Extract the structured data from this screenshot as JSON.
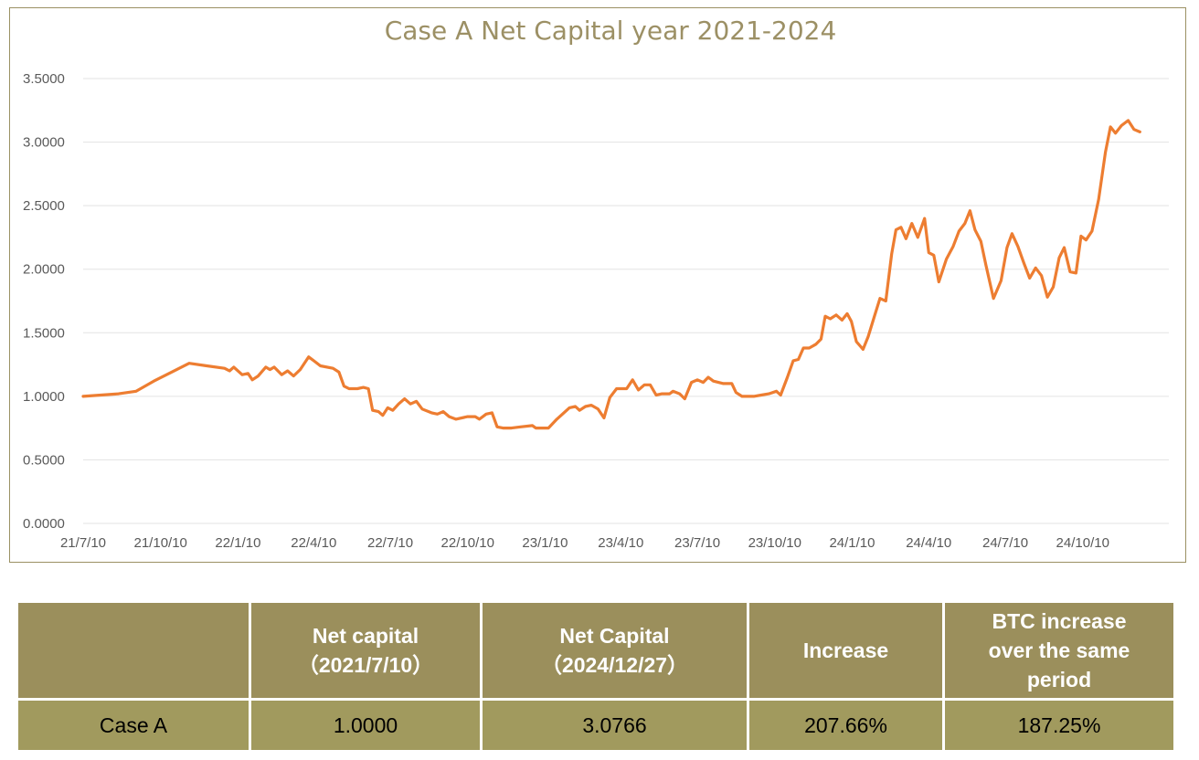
{
  "chart_data": {
    "type": "line",
    "title": "Case A Net Capital year 2021-2024",
    "ylim": [
      0,
      3.5
    ],
    "y_ticks": [
      "0.0000",
      "0.5000",
      "1.0000",
      "1.5000",
      "2.0000",
      "2.5000",
      "3.0000",
      "3.5000"
    ],
    "x_ticks": [
      "21/7/10",
      "21/10/10",
      "22/1/10",
      "22/4/10",
      "22/7/10",
      "22/10/10",
      "23/1/10",
      "23/4/10",
      "23/7/10",
      "23/10/10",
      "24/1/10",
      "24/4/10",
      "24/7/10",
      "24/10/10"
    ],
    "grid": "horizontal",
    "series": [
      {
        "color": "#ed7d31",
        "points": [
          [
            "2021-07-10",
            1.0
          ],
          [
            "2021-07-31",
            1.01
          ],
          [
            "2021-08-21",
            1.02
          ],
          [
            "2021-09-11",
            1.04
          ],
          [
            "2021-10-02",
            1.12
          ],
          [
            "2021-10-23",
            1.19
          ],
          [
            "2021-11-13",
            1.26
          ],
          [
            "2021-12-04",
            1.24
          ],
          [
            "2021-12-25",
            1.22
          ],
          [
            "2021-12-31",
            1.2
          ],
          [
            "2022-01-05",
            1.23
          ],
          [
            "2022-01-15",
            1.17
          ],
          [
            "2022-01-22",
            1.18
          ],
          [
            "2022-01-27",
            1.13
          ],
          [
            "2022-02-03",
            1.16
          ],
          [
            "2022-02-12",
            1.23
          ],
          [
            "2022-02-17",
            1.21
          ],
          [
            "2022-02-22",
            1.23
          ],
          [
            "2022-03-03",
            1.17
          ],
          [
            "2022-03-10",
            1.2
          ],
          [
            "2022-03-17",
            1.16
          ],
          [
            "2022-03-25",
            1.21
          ],
          [
            "2022-04-04",
            1.31
          ],
          [
            "2022-04-10",
            1.28
          ],
          [
            "2022-04-18",
            1.24
          ],
          [
            "2022-05-03",
            1.22
          ],
          [
            "2022-05-10",
            1.19
          ],
          [
            "2022-05-16",
            1.08
          ],
          [
            "2022-05-22",
            1.06
          ],
          [
            "2022-06-01",
            1.06
          ],
          [
            "2022-06-08",
            1.07
          ],
          [
            "2022-06-14",
            1.06
          ],
          [
            "2022-06-19",
            0.89
          ],
          [
            "2022-06-26",
            0.88
          ],
          [
            "2022-07-01",
            0.85
          ],
          [
            "2022-07-07",
            0.91
          ],
          [
            "2022-07-13",
            0.89
          ],
          [
            "2022-07-20",
            0.94
          ],
          [
            "2022-07-27",
            0.98
          ],
          [
            "2022-08-03",
            0.94
          ],
          [
            "2022-08-10",
            0.96
          ],
          [
            "2022-08-17",
            0.9
          ],
          [
            "2022-08-28",
            0.87
          ],
          [
            "2022-09-04",
            0.86
          ],
          [
            "2022-09-11",
            0.88
          ],
          [
            "2022-09-18",
            0.84
          ],
          [
            "2022-09-26",
            0.82
          ],
          [
            "2022-10-10",
            0.84
          ],
          [
            "2022-10-19",
            0.84
          ],
          [
            "2022-10-24",
            0.82
          ],
          [
            "2022-11-01",
            0.86
          ],
          [
            "2022-11-08",
            0.87
          ],
          [
            "2022-11-14",
            0.76
          ],
          [
            "2022-11-21",
            0.75
          ],
          [
            "2022-12-01",
            0.75
          ],
          [
            "2022-12-12",
            0.76
          ],
          [
            "2022-12-26",
            0.77
          ],
          [
            "2022-12-30",
            0.75
          ],
          [
            "2023-01-14",
            0.75
          ],
          [
            "2023-01-24",
            0.82
          ],
          [
            "2023-02-08",
            0.91
          ],
          [
            "2023-02-15",
            0.92
          ],
          [
            "2023-02-20",
            0.89
          ],
          [
            "2023-02-27",
            0.92
          ],
          [
            "2023-03-06",
            0.93
          ],
          [
            "2023-03-14",
            0.9
          ],
          [
            "2023-03-21",
            0.83
          ],
          [
            "2023-03-28",
            0.99
          ],
          [
            "2023-04-05",
            1.06
          ],
          [
            "2023-04-17",
            1.06
          ],
          [
            "2023-04-24",
            1.13
          ],
          [
            "2023-05-01",
            1.05
          ],
          [
            "2023-05-08",
            1.09
          ],
          [
            "2023-05-15",
            1.09
          ],
          [
            "2023-05-22",
            1.01
          ],
          [
            "2023-05-29",
            1.02
          ],
          [
            "2023-06-07",
            1.02
          ],
          [
            "2023-06-11",
            1.04
          ],
          [
            "2023-06-19",
            1.02
          ],
          [
            "2023-06-25",
            0.98
          ],
          [
            "2023-07-03",
            1.11
          ],
          [
            "2023-07-10",
            1.13
          ],
          [
            "2023-07-17",
            1.11
          ],
          [
            "2023-07-23",
            1.15
          ],
          [
            "2023-07-29",
            1.12
          ],
          [
            "2023-08-10",
            1.1
          ],
          [
            "2023-08-20",
            1.1
          ],
          [
            "2023-08-25",
            1.03
          ],
          [
            "2023-09-01",
            1.0
          ],
          [
            "2023-09-15",
            1.0
          ],
          [
            "2023-09-24",
            1.01
          ],
          [
            "2023-10-03",
            1.02
          ],
          [
            "2023-10-12",
            1.04
          ],
          [
            "2023-10-17",
            1.01
          ],
          [
            "2023-10-25",
            1.15
          ],
          [
            "2023-11-01",
            1.28
          ],
          [
            "2023-11-07",
            1.29
          ],
          [
            "2023-11-13",
            1.38
          ],
          [
            "2023-11-20",
            1.38
          ],
          [
            "2023-11-28",
            1.41
          ],
          [
            "2023-12-04",
            1.45
          ],
          [
            "2023-12-09",
            1.63
          ],
          [
            "2023-12-15",
            1.61
          ],
          [
            "2023-12-22",
            1.64
          ],
          [
            "2023-12-29",
            1.6
          ],
          [
            "2024-01-04",
            1.65
          ],
          [
            "2024-01-09",
            1.59
          ],
          [
            "2024-01-15",
            1.43
          ],
          [
            "2024-01-23",
            1.37
          ],
          [
            "2024-01-29",
            1.47
          ],
          [
            "2024-02-05",
            1.62
          ],
          [
            "2024-02-12",
            1.77
          ],
          [
            "2024-02-19",
            1.75
          ],
          [
            "2024-02-26",
            2.12
          ],
          [
            "2024-03-02",
            2.31
          ],
          [
            "2024-03-08",
            2.33
          ],
          [
            "2024-03-14",
            2.24
          ],
          [
            "2024-03-21",
            2.36
          ],
          [
            "2024-03-28",
            2.25
          ],
          [
            "2024-04-05",
            2.4
          ],
          [
            "2024-04-10",
            2.13
          ],
          [
            "2024-04-16",
            2.11
          ],
          [
            "2024-04-22",
            1.9
          ],
          [
            "2024-05-01",
            2.08
          ],
          [
            "2024-05-09",
            2.18
          ],
          [
            "2024-05-16",
            2.3
          ],
          [
            "2024-05-23",
            2.36
          ],
          [
            "2024-05-29",
            2.46
          ],
          [
            "2024-06-04",
            2.31
          ],
          [
            "2024-06-11",
            2.22
          ],
          [
            "2024-06-17",
            2.03
          ],
          [
            "2024-06-26",
            1.77
          ],
          [
            "2024-07-05",
            1.91
          ],
          [
            "2024-07-12",
            2.17
          ],
          [
            "2024-07-18",
            2.28
          ],
          [
            "2024-07-25",
            2.18
          ],
          [
            "2024-08-01",
            2.05
          ],
          [
            "2024-08-08",
            1.93
          ],
          [
            "2024-08-15",
            2.01
          ],
          [
            "2024-08-22",
            1.95
          ],
          [
            "2024-08-29",
            1.78
          ],
          [
            "2024-09-05",
            1.86
          ],
          [
            "2024-09-12",
            2.09
          ],
          [
            "2024-09-18",
            2.17
          ],
          [
            "2024-09-25",
            1.98
          ],
          [
            "2024-10-02",
            1.97
          ],
          [
            "2024-10-08",
            2.26
          ],
          [
            "2024-10-14",
            2.23
          ],
          [
            "2024-10-21",
            2.3
          ],
          [
            "2024-10-29",
            2.55
          ],
          [
            "2024-11-06",
            2.92
          ],
          [
            "2024-11-12",
            3.12
          ],
          [
            "2024-11-18",
            3.07
          ],
          [
            "2024-11-25",
            3.13
          ],
          [
            "2024-12-03",
            3.17
          ],
          [
            "2024-12-10",
            3.1
          ],
          [
            "2024-12-17",
            3.08
          ]
        ]
      }
    ]
  },
  "table": {
    "headers": [
      {
        "lines": [
          ""
        ]
      },
      {
        "lines": [
          "Net capital",
          "（2021/7/10）"
        ]
      },
      {
        "lines": [
          "Net Capital",
          "（2024/12/27）"
        ]
      },
      {
        "lines": [
          "Increase"
        ]
      },
      {
        "lines": [
          "BTC increase",
          "over the same",
          "period"
        ]
      }
    ],
    "row": {
      "name": "Case A",
      "start": "1.0000",
      "end": "3.0766",
      "increase": "207.66%",
      "btc_increase": "187.25%"
    }
  }
}
